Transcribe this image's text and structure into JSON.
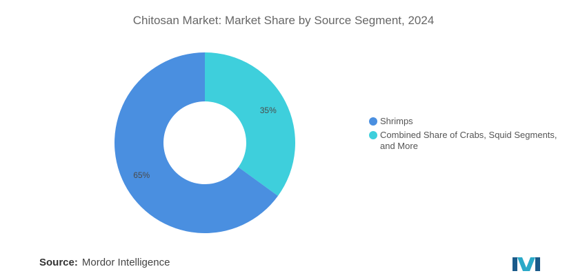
{
  "chart_data": {
    "type": "pie",
    "title": "Chitosan Market: Market Share by Source Segment, 2024",
    "slices": [
      {
        "label": "Shrimps",
        "value": 65,
        "display": "65%",
        "color": "#4a8fe0"
      },
      {
        "label": "Combined Share of Crabs, Squid Segments, and More",
        "value": 35,
        "display": "35%",
        "color": "#3ecfdc"
      }
    ],
    "donut": true,
    "legend_position": "right"
  },
  "source": {
    "key": "Source:",
    "value": "Mordor Intelligence"
  },
  "logo": {
    "colors": [
      "#2aa9c8",
      "#1a5a8a"
    ]
  }
}
